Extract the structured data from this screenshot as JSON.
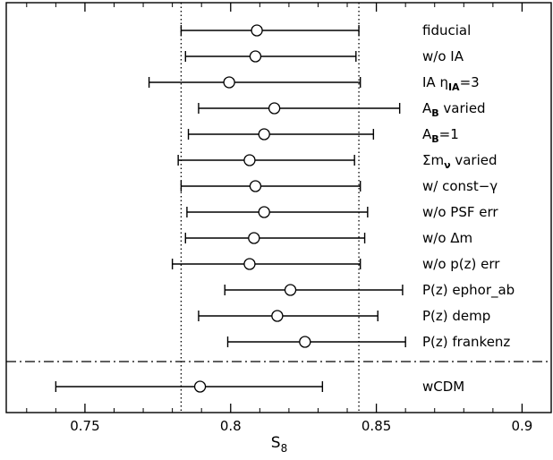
{
  "chart_data": {
    "type": "errorbar",
    "xlabel": "S",
    "xlabel_subscript": "8",
    "xlim": [
      0.723,
      0.91
    ],
    "xticks": [
      0.75,
      0.8,
      0.85,
      0.9
    ],
    "xtick_labels": [
      "0.75",
      "0.8",
      "0.85",
      "0.9"
    ],
    "reference_lines": [
      0.783,
      0.844
    ],
    "grid": false,
    "rows": [
      {
        "label": "fiducial",
        "center": 0.809,
        "low": 0.783,
        "high": 0.844
      },
      {
        "label": "w/o IA",
        "center": 0.8085,
        "low": 0.7845,
        "high": 0.843
      },
      {
        "label": "IA η_IA=3",
        "center": 0.7995,
        "low": 0.772,
        "high": 0.8445
      },
      {
        "label": "A_B varied",
        "center": 0.815,
        "low": 0.789,
        "high": 0.858
      },
      {
        "label": "A_B=1",
        "center": 0.8115,
        "low": 0.7855,
        "high": 0.849
      },
      {
        "label": "Σm_ν varied",
        "center": 0.8065,
        "low": 0.782,
        "high": 0.8425
      },
      {
        "label": "w/ const−γ",
        "center": 0.8085,
        "low": 0.783,
        "high": 0.8445
      },
      {
        "label": "w/o PSF err",
        "center": 0.8115,
        "low": 0.785,
        "high": 0.847
      },
      {
        "label": "w/o Δm",
        "center": 0.808,
        "low": 0.7845,
        "high": 0.846
      },
      {
        "label": "w/o p(z) err",
        "center": 0.8065,
        "low": 0.78,
        "high": 0.8445
      },
      {
        "label": "P(z) ephor_ab",
        "center": 0.8205,
        "low": 0.798,
        "high": 0.859
      },
      {
        "label": "P(z) demp",
        "center": 0.816,
        "low": 0.789,
        "high": 0.8505
      },
      {
        "label": "P(z) frankenz",
        "center": 0.8255,
        "low": 0.799,
        "high": 0.86
      }
    ],
    "separated_rows": [
      {
        "label": "wCDM",
        "center": 0.7895,
        "low": 0.74,
        "high": 0.8315
      }
    ]
  }
}
